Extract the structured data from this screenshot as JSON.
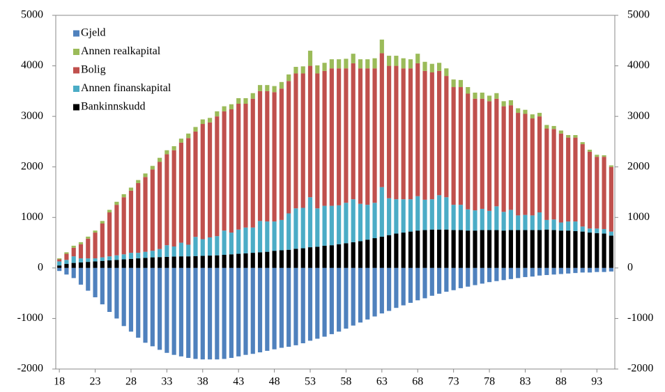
{
  "chart_data": {
    "type": "stacked_bar",
    "categories": [
      "18",
      null,
      null,
      null,
      null,
      "23",
      null,
      null,
      null,
      null,
      "28",
      null,
      null,
      null,
      null,
      "33",
      null,
      null,
      null,
      null,
      "38",
      null,
      null,
      null,
      null,
      "43",
      null,
      null,
      null,
      null,
      "48",
      null,
      null,
      null,
      null,
      "53",
      null,
      null,
      null,
      null,
      "58",
      null,
      null,
      null,
      null,
      "63",
      null,
      null,
      null,
      null,
      "68",
      null,
      null,
      null,
      null,
      "73",
      null,
      null,
      null,
      null,
      "78",
      null,
      null,
      null,
      null,
      "83",
      null,
      null,
      null,
      null,
      "88",
      null,
      null,
      null,
      null,
      "93",
      null,
      null
    ],
    "series": [
      {
        "name": "Gjeld",
        "color": "#4f81bd",
        "values": [
          -60,
          -130,
          -200,
          -330,
          -450,
          -580,
          -720,
          -870,
          -1000,
          -1150,
          -1260,
          -1380,
          -1480,
          -1550,
          -1620,
          -1680,
          -1720,
          -1750,
          -1780,
          -1800,
          -1810,
          -1810,
          -1810,
          -1800,
          -1780,
          -1750,
          -1720,
          -1700,
          -1670,
          -1640,
          -1610,
          -1580,
          -1560,
          -1530,
          -1490,
          -1440,
          -1400,
          -1360,
          -1310,
          -1260,
          -1200,
          -1140,
          -1080,
          -1020,
          -960,
          -900,
          -850,
          -790,
          -740,
          -690,
          -640,
          -600,
          -550,
          -510,
          -470,
          -440,
          -400,
          -370,
          -340,
          -310,
          -280,
          -260,
          -240,
          -220,
          -200,
          -180,
          -170,
          -150,
          -140,
          -130,
          -120,
          -110,
          -100,
          -90,
          -90,
          -80,
          -80,
          -70
        ]
      },
      {
        "name": "Annen realkapital",
        "color": "#9bbb59",
        "values": [
          20,
          30,
          40,
          40,
          40,
          40,
          50,
          50,
          60,
          60,
          60,
          60,
          70,
          70,
          80,
          80,
          80,
          80,
          90,
          90,
          90,
          90,
          100,
          100,
          100,
          110,
          110,
          110,
          120,
          120,
          120,
          130,
          130,
          130,
          140,
          300,
          160,
          160,
          180,
          180,
          190,
          190,
          180,
          180,
          200,
          270,
          200,
          200,
          200,
          180,
          190,
          180,
          170,
          160,
          150,
          150,
          140,
          130,
          120,
          120,
          110,
          110,
          100,
          100,
          90,
          80,
          80,
          70,
          70,
          60,
          60,
          50,
          50,
          40,
          40,
          40,
          30,
          30
        ]
      },
      {
        "name": "Bolig",
        "color": "#c0504d",
        "values": [
          40,
          120,
          170,
          280,
          390,
          510,
          670,
          870,
          1000,
          1130,
          1230,
          1380,
          1480,
          1610,
          1725,
          1800,
          1905,
          1980,
          2110,
          2085,
          2280,
          2275,
          2370,
          2360,
          2440,
          2490,
          2450,
          2550,
          2570,
          2580,
          2560,
          2600,
          2620,
          2670,
          2660,
          2600,
          2670,
          2670,
          2720,
          2710,
          2660,
          2690,
          2680,
          2700,
          2660,
          2650,
          2620,
          2640,
          2590,
          2590,
          2630,
          2550,
          2510,
          2460,
          2400,
          2330,
          2330,
          2290,
          2210,
          2180,
          2170,
          2130,
          2090,
          2070,
          2030,
          2000,
          1920,
          1900,
          1810,
          1790,
          1760,
          1660,
          1660,
          1630,
          1520,
          1420,
          1430,
          1280
        ]
      },
      {
        "name": "Annen finanskapital",
        "color": "#4bacc6",
        "values": [
          80,
          80,
          130,
          80,
          70,
          60,
          70,
          80,
          90,
          100,
          120,
          110,
          120,
          130,
          160,
          230,
          200,
          270,
          230,
          380,
          330,
          360,
          380,
          480,
          430,
          480,
          510,
          500,
          620,
          600,
          580,
          600,
          720,
          800,
          800,
          990,
          760,
          790,
          780,
          770,
          800,
          850,
          740,
          690,
          700,
          980,
          730,
          680,
          660,
          640,
          680,
          600,
          600,
          680,
          640,
          500,
          500,
          420,
          400,
          420,
          380,
          470,
          370,
          400,
          290,
          300,
          290,
          350,
          190,
          210,
          160,
          180,
          190,
          100,
          80,
          90,
          90,
          80
        ]
      },
      {
        "name": "Bankinnskudd",
        "color": "#000000",
        "values": [
          50,
          80,
          100,
          110,
          120,
          130,
          140,
          150,
          160,
          170,
          180,
          190,
          200,
          210,
          215,
          220,
          225,
          230,
          230,
          235,
          240,
          245,
          250,
          260,
          270,
          280,
          290,
          300,
          310,
          320,
          340,
          350,
          360,
          380,
          390,
          410,
          420,
          440,
          450,
          470,
          490,
          510,
          530,
          560,
          590,
          620,
          650,
          680,
          700,
          720,
          740,
          750,
          760,
          760,
          760,
          750,
          750,
          740,
          740,
          750,
          750,
          750,
          740,
          750,
          750,
          750,
          750,
          750,
          760,
          750,
          740,
          740,
          730,
          720,
          700,
          690,
          680,
          640
        ]
      }
    ],
    "ylim": [
      -2000,
      5000
    ],
    "yticks": [
      -2000,
      -1000,
      0,
      1000,
      2000,
      3000,
      4000,
      5000
    ],
    "y2lim": [
      -2000,
      5000
    ],
    "y2ticks": [
      -2000,
      -1000,
      0,
      1000,
      2000,
      3000,
      4000,
      5000
    ],
    "legend": "upper left"
  }
}
